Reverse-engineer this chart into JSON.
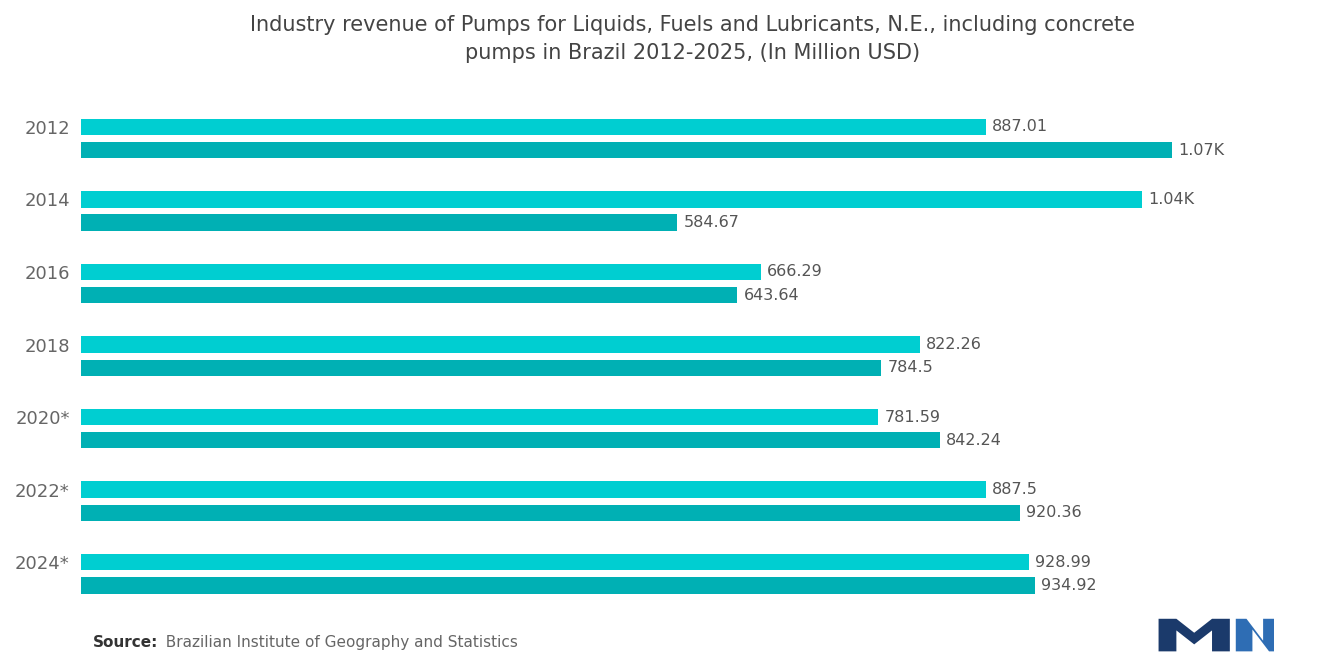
{
  "title": "Industry revenue of Pumps for Liquids, Fuels and Lubricants, N.E., including concrete\npumps in Brazil 2012-2025, (In Million USD)",
  "bar_color_light": "#00CED1",
  "bar_color_dark": "#00B0B4",
  "background_color": "#ffffff",
  "source_bold": "Source:",
  "source_rest": "  Brazilian Institute of Geography and Statistics",
  "values": [
    887.01,
    1070.0,
    1040.0,
    584.67,
    666.29,
    643.64,
    822.26,
    784.5,
    781.59,
    842.24,
    887.5,
    920.36,
    928.99,
    934.92
  ],
  "value_labels": [
    "887.01",
    "1.07K",
    "1.04K",
    "584.67",
    "666.29",
    "643.64",
    "822.26",
    "784.5",
    "781.59",
    "842.24",
    "887.5",
    "920.36",
    "928.99",
    "934.92"
  ],
  "year_labels": [
    "2012",
    "2014",
    "2016",
    "2018",
    "2020*",
    "2022*",
    "2024*"
  ],
  "xlim": [
    0,
    1200
  ],
  "title_fontsize": 15,
  "label_fontsize": 11.5,
  "tick_fontsize": 13,
  "source_fontsize": 11
}
